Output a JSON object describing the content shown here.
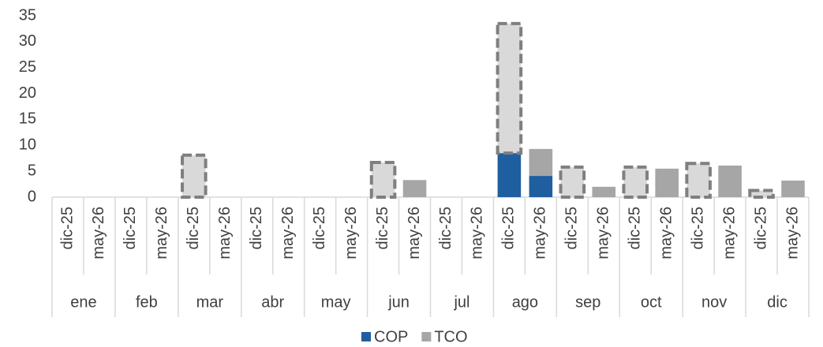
{
  "chart_data": {
    "type": "bar",
    "stacked": true,
    "groups": [
      "ene",
      "feb",
      "mar",
      "abr",
      "may",
      "jun",
      "jul",
      "ago",
      "sep",
      "oct",
      "nov",
      "dic"
    ],
    "categories": [
      "dic-25",
      "may-26",
      "dic-25",
      "may-26",
      "dic-25",
      "may-26",
      "dic-25",
      "may-26",
      "dic-25",
      "may-26",
      "dic-25",
      "may-26",
      "dic-25",
      "may-26",
      "dic-25",
      "may-26",
      "dic-25",
      "may-26",
      "dic-25",
      "may-26",
      "dic-25",
      "may-26",
      "dic-25",
      "may-26"
    ],
    "series": [
      {
        "name": "COP",
        "color": "#1f5fa0",
        "values": [
          0,
          0,
          0,
          0,
          0,
          0,
          0,
          0,
          0,
          0,
          0,
          0,
          0,
          0,
          8.5,
          4.1,
          0,
          0,
          0,
          0,
          0,
          0,
          0,
          0
        ]
      },
      {
        "name": "TCO",
        "color": "#a6a6a6",
        "values": [
          0,
          0,
          0,
          0,
          8.1,
          0,
          0,
          0,
          0,
          0,
          6.7,
          3.3,
          0,
          0,
          25,
          5.2,
          5.8,
          2,
          5.8,
          5.5,
          6.5,
          6.1,
          1.3,
          3.2
        ]
      }
    ],
    "ylim": [
      0,
      35
    ],
    "yticks": [
      0,
      5,
      10,
      15,
      20,
      25,
      30,
      35
    ],
    "grid": false,
    "legend": "bottom"
  }
}
